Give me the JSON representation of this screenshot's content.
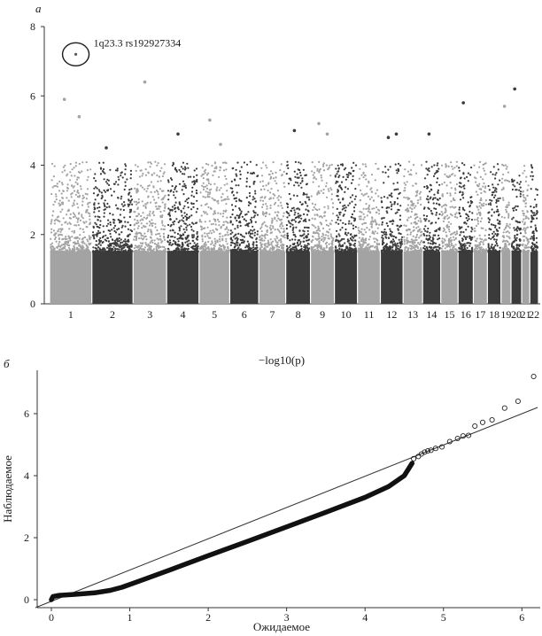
{
  "figure": {
    "panel_a_letter": "а",
    "panel_b_letter": "б"
  },
  "chart_data": [
    {
      "type": "scatter",
      "subtype": "manhattan",
      "panel": "а",
      "xlabel": "",
      "ylabel": "",
      "ylim": [
        0,
        8
      ],
      "yticks": [
        0,
        2,
        4,
        6,
        8
      ],
      "categories": [
        "1",
        "2",
        "3",
        "4",
        "5",
        "6",
        "7",
        "8",
        "9",
        "10",
        "11",
        "12",
        "13",
        "14",
        "15",
        "16",
        "17",
        "18",
        "19",
        "20",
        "21",
        "22"
      ],
      "annotation": {
        "label": "1q23.3 rs192927334",
        "chromosome": "1",
        "value": 7.2
      },
      "colors": {
        "odd": "#a3a3a3",
        "even": "#3b3b3b"
      },
      "top_hits": [
        {
          "chromosome": "1",
          "value": 5.9
        },
        {
          "chromosome": "1",
          "value": 5.4
        },
        {
          "chromosome": "2",
          "value": 4.5
        },
        {
          "chromosome": "3",
          "value": 6.4
        },
        {
          "chromosome": "4",
          "value": 4.9
        },
        {
          "chromosome": "5",
          "value": 5.3
        },
        {
          "chromosome": "5",
          "value": 4.6
        },
        {
          "chromosome": "8",
          "value": 5.0
        },
        {
          "chromosome": "9",
          "value": 5.2
        },
        {
          "chromosome": "9",
          "value": 4.9
        },
        {
          "chromosome": "12",
          "value": 4.8
        },
        {
          "chromosome": "12",
          "value": 4.9
        },
        {
          "chromosome": "14",
          "value": 4.9
        },
        {
          "chromosome": "16",
          "value": 5.8
        },
        {
          "chromosome": "19",
          "value": 5.7
        },
        {
          "chromosome": "20",
          "value": 6.2
        }
      ]
    },
    {
      "type": "scatter",
      "subtype": "qq",
      "panel": "б",
      "title": "−log10(p)",
      "xlabel": "Ожидаемое",
      "ylabel": "Наблюдаемое",
      "xlim": [
        0,
        6.2
      ],
      "ylim": [
        0,
        7.4
      ],
      "xticks": [
        0,
        1,
        2,
        3,
        4,
        5,
        6
      ],
      "yticks": [
        0,
        2,
        4,
        6
      ],
      "reference_line": {
        "from": [
          0,
          0
        ],
        "to": [
          6.2,
          6.2
        ]
      },
      "tail_points": [
        {
          "x": 4.62,
          "y": 4.55
        },
        {
          "x": 4.68,
          "y": 4.62
        },
        {
          "x": 4.72,
          "y": 4.7
        },
        {
          "x": 4.76,
          "y": 4.76
        },
        {
          "x": 4.8,
          "y": 4.8
        },
        {
          "x": 4.84,
          "y": 4.82
        },
        {
          "x": 4.9,
          "y": 4.88
        },
        {
          "x": 4.98,
          "y": 4.93
        },
        {
          "x": 5.08,
          "y": 5.1
        },
        {
          "x": 5.18,
          "y": 5.2
        },
        {
          "x": 5.25,
          "y": 5.28
        },
        {
          "x": 5.32,
          "y": 5.3
        },
        {
          "x": 5.4,
          "y": 5.6
        },
        {
          "x": 5.5,
          "y": 5.72
        },
        {
          "x": 5.62,
          "y": 5.8
        },
        {
          "x": 5.78,
          "y": 6.18
        },
        {
          "x": 5.95,
          "y": 6.4
        },
        {
          "x": 6.15,
          "y": 7.2
        }
      ]
    }
  ]
}
